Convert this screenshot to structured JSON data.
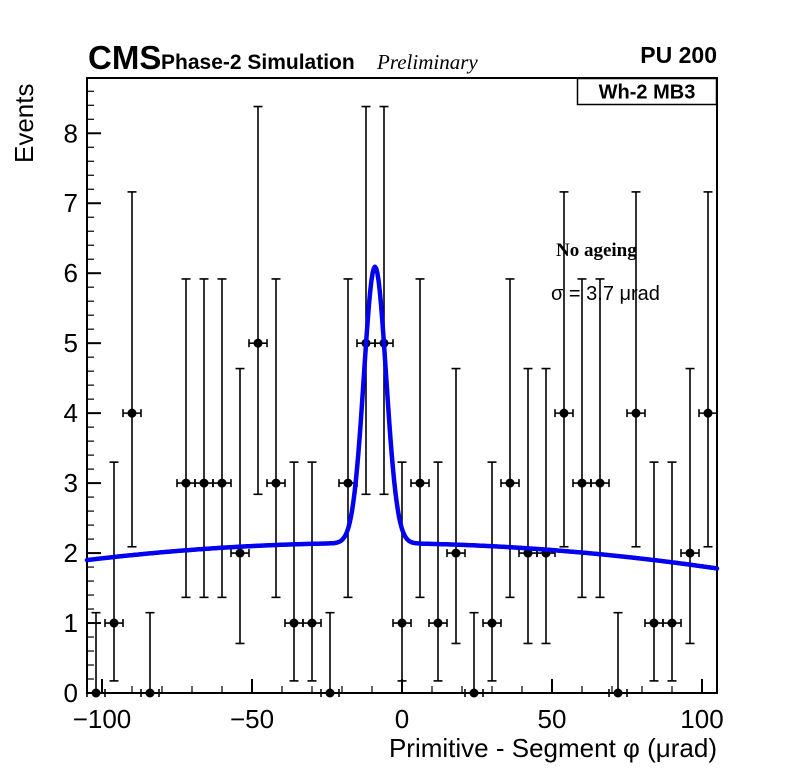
{
  "header": {
    "experiment": "CMS",
    "label": "Phase-2 Simulation",
    "sublabel": "Preliminary",
    "right": "PU 200"
  },
  "plot": {
    "pave_title": "Wh-2 MB3",
    "annotations": {
      "line1": "No ageing",
      "line2": "σ = 3.7 μrad"
    }
  },
  "chart_data": {
    "type": "scatter",
    "title": "Wh-2 MB3",
    "xlabel": "Primitive - Segment φ (μrad)",
    "ylabel": "Events",
    "xlim": [
      -105,
      105
    ],
    "ylim": [
      0,
      8.79
    ],
    "x_major_ticks": [
      -100,
      -50,
      0,
      50,
      100
    ],
    "x_minor_step": 10,
    "y_major_ticks": [
      0,
      1,
      2,
      3,
      4,
      5,
      6,
      7,
      8
    ],
    "y_minor_step": 0.2,
    "grid": false,
    "legend_position": "none",
    "bin_width": 6,
    "x_error_half_width": 3,
    "marker_color": "#000000",
    "fit_color": "#0202ee",
    "points": [
      {
        "x": -102,
        "y": 0
      },
      {
        "x": -96,
        "y": 1
      },
      {
        "x": -90,
        "y": 4
      },
      {
        "x": -84,
        "y": 0
      },
      {
        "x": -72,
        "y": 3
      },
      {
        "x": -66,
        "y": 3
      },
      {
        "x": -60,
        "y": 3
      },
      {
        "x": -54,
        "y": 2
      },
      {
        "x": -48,
        "y": 5
      },
      {
        "x": -42,
        "y": 3
      },
      {
        "x": -36,
        "y": 1
      },
      {
        "x": -30,
        "y": 1
      },
      {
        "x": -24,
        "y": 0
      },
      {
        "x": -18,
        "y": 3
      },
      {
        "x": -12,
        "y": 5
      },
      {
        "x": -6,
        "y": 5
      },
      {
        "x": 0,
        "y": 1
      },
      {
        "x": 6,
        "y": 3
      },
      {
        "x": 12,
        "y": 1
      },
      {
        "x": 18,
        "y": 2
      },
      {
        "x": 24,
        "y": 0
      },
      {
        "x": 30,
        "y": 1
      },
      {
        "x": 36,
        "y": 3
      },
      {
        "x": 42,
        "y": 2
      },
      {
        "x": 48,
        "y": 2
      },
      {
        "x": 54,
        "y": 4
      },
      {
        "x": 60,
        "y": 3
      },
      {
        "x": 66,
        "y": 3
      },
      {
        "x": 72,
        "y": 0
      },
      {
        "x": 78,
        "y": 4
      },
      {
        "x": 84,
        "y": 1
      },
      {
        "x": 90,
        "y": 1
      },
      {
        "x": 96,
        "y": 2
      },
      {
        "x": 102,
        "y": 4
      }
    ],
    "poisson_errors": {
      "0": [
        0,
        1.148
      ],
      "1": [
        0.827,
        2.3
      ],
      "2": [
        1.292,
        2.637
      ],
      "3": [
        1.633,
        2.918
      ],
      "4": [
        1.91,
        3.162
      ],
      "5": [
        2.16,
        3.382
      ]
    },
    "fit": {
      "type": "gaussian_plus_quadratic_background",
      "mean": -9,
      "sigma": 3.7,
      "amplitude": 3.95,
      "peak_value": 6.09,
      "bg": {
        "a": 2.1394,
        "b": -0.000571,
        "c": -2.716e-05
      }
    }
  }
}
